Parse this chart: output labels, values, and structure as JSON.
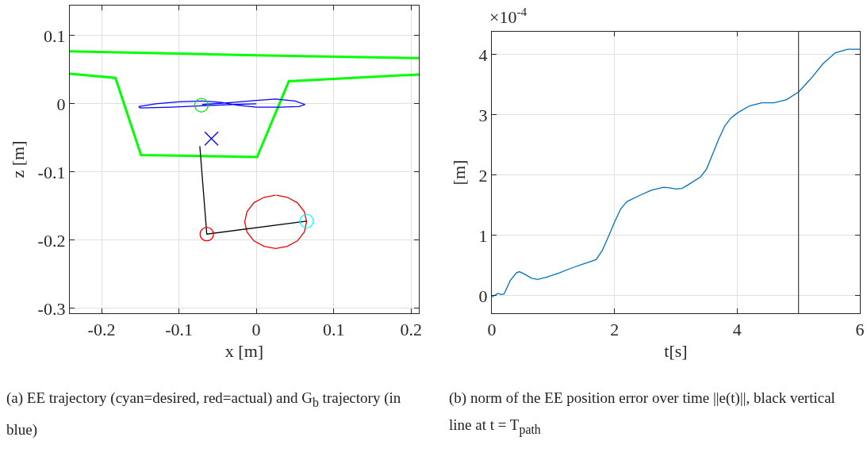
{
  "chart_data": [
    {
      "type": "line",
      "title": "(a) EE trajectory (cyan=desired, red=actual) and G$_{b}$ trajectory (in blue)",
      "xlabel": "x [m]",
      "ylabel": "z [m]",
      "xlim": [
        -0.241,
        0.21
      ],
      "ylim": [
        -0.307,
        0.144
      ],
      "xticks": [
        -0.2,
        -0.1,
        0,
        0.1,
        0.2
      ],
      "yticks": [
        -0.3,
        -0.2,
        -0.1,
        0,
        0.1
      ],
      "grid": true,
      "series": [
        {
          "color": "#00ff00",
          "x": [
            -0.241,
            0,
            0.21
          ],
          "values": [
            0.077,
            0.071,
            0.067
          ]
        },
        {
          "color": "#00ff00",
          "x": [
            -0.241,
            -0.182,
            -0.149,
            0.001,
            0.042,
            0.21
          ],
          "values": [
            0.044,
            0.038,
            -0.075,
            -0.078,
            0.033,
            0.043
          ]
        },
        {
          "color": "#0000ff",
          "x": [
            0,
            -0.03,
            -0.07,
            -0.11,
            -0.15,
            -0.152,
            -0.13,
            -0.1,
            -0.07,
            -0.045,
            -0.025,
            0,
            0.03,
            0.055,
            0.063,
            0.05,
            0.025,
            0,
            -0.03,
            -0.07
          ],
          "values": [
            0,
            -0.001,
            -0.003,
            -0.005,
            -0.006,
            -0.004,
            0,
            0.003,
            0.004,
            0.002,
            -0.002,
            -0.005,
            -0.005,
            -0.004,
            -0.001,
            0.004,
            0.007,
            0.005,
            0.002,
            -0.001
          ]
        },
        {
          "color": "#ee0000",
          "x": [
            0.025,
            0.01,
            -0.003,
            -0.012,
            -0.015,
            -0.012,
            -0.003,
            0.01,
            0.025,
            0.04,
            0.053,
            0.062,
            0.065,
            0.062,
            0.053,
            0.04,
            0.026
          ],
          "values": [
            -0.134,
            -0.137,
            -0.145,
            -0.158,
            -0.173,
            -0.188,
            -0.201,
            -0.209,
            -0.212,
            -0.209,
            -0.201,
            -0.188,
            -0.173,
            -0.158,
            -0.145,
            -0.137,
            -0.134
          ]
        },
        {
          "color": "#000000",
          "x": [
            -0.073,
            -0.064,
            0.065
          ],
          "values": [
            -0.062,
            -0.191,
            -0.172
          ]
        },
        {
          "type": "scatter",
          "marker": "circle",
          "color": "#00dd00",
          "x": [
            -0.071
          ],
          "values": [
            -0.002
          ]
        },
        {
          "type": "scatter",
          "marker": "circle",
          "color": "#ff0000",
          "x": [
            -0.064
          ],
          "values": [
            -0.191
          ]
        },
        {
          "type": "scatter",
          "marker": "circle",
          "color": "#00ffff",
          "x": [
            0.065
          ],
          "values": [
            -0.172
          ]
        },
        {
          "type": "scatter",
          "marker": "cross",
          "color": "#0000ff",
          "x": [
            -0.058
          ],
          "values": [
            -0.051
          ]
        }
      ]
    },
    {
      "type": "line",
      "title": "(b) norm of the EE position error over time ||e(t)||, black vertical line at t = T$_{path}$",
      "xlabel": "t[s]",
      "ylabel": "[m]",
      "annotations": [
        "×10$^{-4}$"
      ],
      "xlim": [
        0,
        6
      ],
      "ylim": [
        -0.29,
        4.38
      ],
      "xticks": [
        0,
        2,
        4,
        6
      ],
      "yticks": [
        0,
        1,
        2,
        3,
        4
      ],
      "grid": true,
      "ref_lines": [
        {
          "axis": "x",
          "value": 5,
          "color": "#404040"
        }
      ],
      "series": [
        {
          "color": "#0072bd",
          "x": [
            0,
            0.05,
            0.1,
            0.15,
            0.2,
            0.3,
            0.4,
            0.45,
            0.55,
            0.65,
            0.75,
            0.9,
            1.1,
            1.3,
            1.5,
            1.7,
            1.8,
            1.9,
            2.0,
            2.1,
            2.2,
            2.4,
            2.6,
            2.8,
            2.9,
            3.0,
            3.1,
            3.2,
            3.4,
            3.5,
            3.6,
            3.7,
            3.8,
            3.9,
            4.0,
            4.2,
            4.4,
            4.6,
            4.8,
            5.0,
            5.2,
            5.4,
            5.6,
            5.8,
            6.0
          ],
          "values": [
            -0.02,
            0.01,
            0.04,
            0.02,
            0.03,
            0.25,
            0.38,
            0.4,
            0.35,
            0.29,
            0.27,
            0.31,
            0.38,
            0.46,
            0.53,
            0.6,
            0.75,
            0.98,
            1.22,
            1.44,
            1.56,
            1.66,
            1.75,
            1.8,
            1.79,
            1.77,
            1.78,
            1.84,
            1.97,
            2.1,
            2.35,
            2.6,
            2.82,
            2.95,
            3.03,
            3.15,
            3.2,
            3.2,
            3.25,
            3.38,
            3.6,
            3.85,
            4.03,
            4.09,
            4.09
          ]
        }
      ]
    }
  ]
}
